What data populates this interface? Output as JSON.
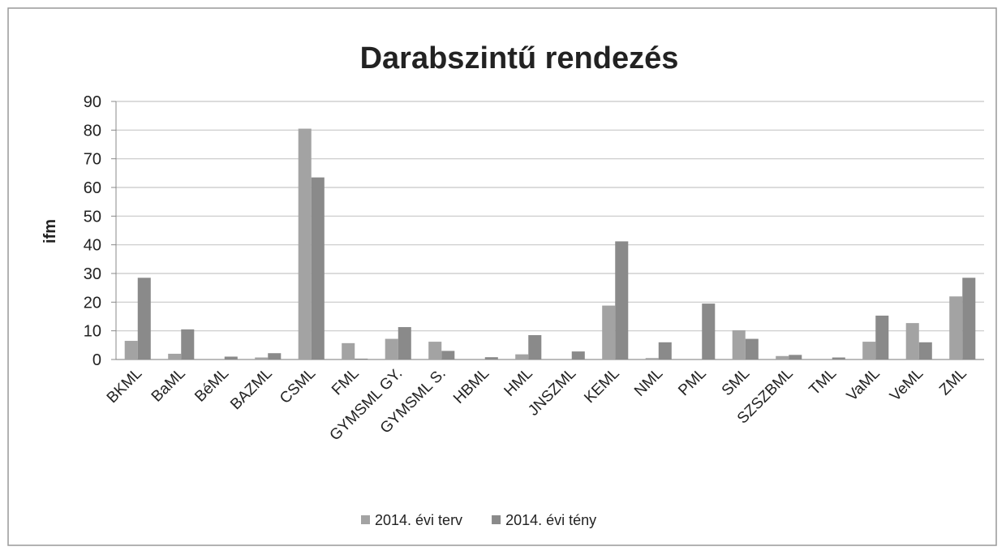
{
  "chart_data": {
    "type": "bar",
    "title": "Darabszintű rendezés",
    "y_label": "ifm",
    "categories": [
      "BKML",
      "BaML",
      "BéML",
      "BAZML",
      "CSML",
      "FML",
      "GYMSML GY.",
      "GYMSML S.",
      "HBML",
      "HML",
      "JNSZML",
      "KEML",
      "NML",
      "PML",
      "SML",
      "SZSZBML",
      "TML",
      "VaML",
      "VeML",
      "ZML"
    ],
    "series": [
      {
        "name": "2014. évi terv",
        "color": "#a3a3a3",
        "values": [
          6.5,
          2,
          0,
          0.7,
          80.5,
          5.7,
          7.2,
          6.2,
          0,
          1.8,
          0,
          18.8,
          0.5,
          0,
          10.2,
          1.2,
          0,
          6.2,
          12.7,
          22
        ]
      },
      {
        "name": "2014. évi tény",
        "color": "#8a8a8a",
        "values": [
          28.5,
          10.5,
          1,
          2.2,
          63.5,
          0.3,
          11.3,
          3,
          0.8,
          8.5,
          2.8,
          41.2,
          6,
          19.5,
          7.2,
          1.6,
          0.7,
          15.3,
          6,
          28.5
        ]
      }
    ],
    "ylim": [
      0,
      90
    ],
    "yticks": [
      0,
      10,
      20,
      30,
      40,
      50,
      60,
      70,
      80,
      90
    ],
    "grid": true,
    "legend": "bottom"
  }
}
